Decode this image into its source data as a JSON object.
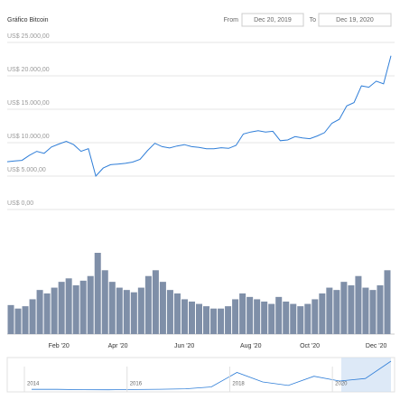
{
  "chart_data": [
    {
      "type": "line",
      "title": "Gráfico Bitcoin",
      "from_label": "From",
      "from_date": "Dec 20, 2019",
      "to_label": "To",
      "to_date": "Dec 19, 2020",
      "categories": [
        null,
        null,
        null,
        null,
        null,
        null,
        null,
        "Feb '20",
        null,
        null,
        null,
        null,
        null,
        null,
        null,
        "Apr '20",
        null,
        null,
        null,
        null,
        null,
        null,
        null,
        null,
        "Jun '20",
        null,
        null,
        null,
        null,
        null,
        null,
        null,
        null,
        "Aug '20",
        null,
        null,
        null,
        null,
        null,
        null,
        null,
        "Oct '20",
        null,
        null,
        null,
        null,
        null,
        null,
        null,
        null,
        "Dec '20",
        null,
        null
      ],
      "series": [
        {
          "name": "Bitcoin",
          "color": "#2f7ed8",
          "values": [
            7150,
            7250,
            7350,
            8100,
            8700,
            8400,
            9350,
            9800,
            10200,
            9700,
            8700,
            9100,
            5000,
            6200,
            6700,
            6800,
            6900,
            7100,
            7500,
            8800,
            9900,
            9400,
            9200,
            9500,
            9700,
            9400,
            9300,
            9100,
            9100,
            9250,
            9150,
            9600,
            11300,
            11600,
            11800,
            11600,
            11700,
            10300,
            10400,
            10900,
            10700,
            10600,
            11000,
            11500,
            12900,
            13500,
            15500,
            16000,
            18500,
            18300,
            19200,
            18800,
            23000
          ]
        }
      ],
      "ylim": [
        0,
        25000
      ],
      "yticks": [
        {
          "value": 0,
          "label": "US$ 0,00"
        },
        {
          "value": 5000,
          "label": "US$ 5.000,00"
        },
        {
          "value": 10000,
          "label": "US$ 10.000,00"
        },
        {
          "value": 15000,
          "label": "US$ 15.000,00"
        },
        {
          "value": 20000,
          "label": "US$ 20.000,00"
        },
        {
          "value": 25000,
          "label": "US$ 25.000,00"
        }
      ],
      "grid": true
    },
    {
      "type": "bar",
      "color": "#7f8fa8",
      "values": [
        25,
        22,
        24,
        30,
        38,
        35,
        40,
        45,
        48,
        42,
        46,
        50,
        70,
        55,
        45,
        40,
        38,
        36,
        40,
        50,
        55,
        45,
        38,
        35,
        30,
        28,
        26,
        24,
        22,
        22,
        24,
        30,
        35,
        32,
        30,
        28,
        26,
        32,
        28,
        26,
        24,
        26,
        30,
        35,
        40,
        38,
        45,
        42,
        50,
        40,
        38,
        42,
        55
      ]
    },
    {
      "type": "line",
      "categories": [
        "2014",
        null,
        null,
        null,
        "2016",
        null,
        null,
        null,
        "2018",
        null,
        null,
        null,
        "2020",
        null,
        null
      ],
      "series": [
        {
          "name": "Bitcoin",
          "color": "#2f7ed8",
          "values": [
            600,
            550,
            300,
            250,
            430,
            650,
            1000,
            2500,
            14000,
            6500,
            3700,
            11000,
            7200,
            9200,
            23000
          ]
        }
      ]
    }
  ]
}
